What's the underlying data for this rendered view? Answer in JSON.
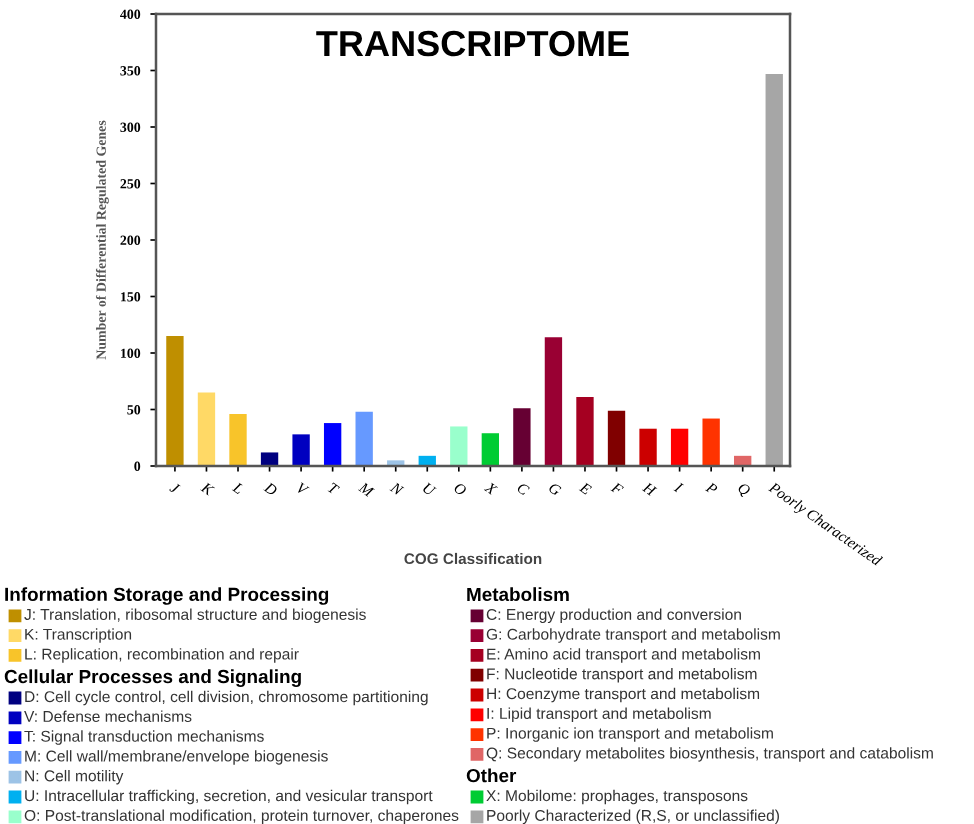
{
  "chart_data": {
    "type": "bar",
    "title": "TRANSCRIPTOME",
    "xlabel": "COG Classification",
    "ylabel": "Number of Differential Regulated Genes",
    "categories": [
      "J",
      "K",
      "L",
      "D",
      "V",
      "T",
      "M",
      "N",
      "U",
      "O",
      "X",
      "C",
      "G",
      "E",
      "F",
      "H",
      "I",
      "P",
      "Q",
      "Poorly Characterized"
    ],
    "series": [
      {
        "name": "J: Translation, ribosomal structure and biogenesis",
        "color": "#bf8f00",
        "values": [
          115,
          null,
          null,
          null,
          null,
          null,
          null,
          null,
          null,
          null,
          null,
          null,
          null,
          null,
          null,
          null,
          null,
          null,
          null,
          null
        ]
      },
      {
        "name": "K: Transcription",
        "color": "#ffd966",
        "values": [
          null,
          65,
          null,
          null,
          null,
          null,
          null,
          null,
          null,
          null,
          null,
          null,
          null,
          null,
          null,
          null,
          null,
          null,
          null,
          null
        ]
      },
      {
        "name": "L: Replication, recombination and repair",
        "color": "#f8c42a",
        "values": [
          null,
          null,
          46,
          null,
          null,
          null,
          null,
          null,
          null,
          null,
          null,
          null,
          null,
          null,
          null,
          null,
          null,
          null,
          null,
          null
        ]
      },
      {
        "name": "D: Cell cycle control, cell division, chromosome partitioning",
        "color": "#000080",
        "values": [
          null,
          null,
          null,
          12,
          null,
          null,
          null,
          null,
          null,
          null,
          null,
          null,
          null,
          null,
          null,
          null,
          null,
          null,
          null,
          null
        ]
      },
      {
        "name": "V: Defense mechanisms",
        "color": "#0000c0",
        "values": [
          null,
          null,
          null,
          null,
          28,
          null,
          null,
          null,
          null,
          null,
          null,
          null,
          null,
          null,
          null,
          null,
          null,
          null,
          null,
          null
        ]
      },
      {
        "name": "T: Signal transduction mechanisms",
        "color": "#0000ff",
        "values": [
          null,
          null,
          null,
          null,
          null,
          38,
          null,
          null,
          null,
          null,
          null,
          null,
          null,
          null,
          null,
          null,
          null,
          null,
          null,
          null
        ]
      },
      {
        "name": "M: Cell wall/membrane/envelope biogenesis",
        "color": "#6699ff",
        "values": [
          null,
          null,
          null,
          null,
          null,
          null,
          48,
          null,
          null,
          null,
          null,
          null,
          null,
          null,
          null,
          null,
          null,
          null,
          null,
          null
        ]
      },
      {
        "name": "N: Cell motility",
        "color": "#9dc3e6",
        "values": [
          null,
          null,
          null,
          null,
          null,
          null,
          null,
          5,
          null,
          null,
          null,
          null,
          null,
          null,
          null,
          null,
          null,
          null,
          null,
          null
        ]
      },
      {
        "name": "U: Intracellular trafficking, secretion, and vesicular transport",
        "color": "#00b0f0",
        "values": [
          null,
          null,
          null,
          null,
          null,
          null,
          null,
          null,
          9,
          null,
          null,
          null,
          null,
          null,
          null,
          null,
          null,
          null,
          null,
          null
        ]
      },
      {
        "name": "O: Post-translational modification, protein turnover, chaperones",
        "color": "#99ffcc",
        "values": [
          null,
          null,
          null,
          null,
          null,
          null,
          null,
          null,
          null,
          35,
          null,
          null,
          null,
          null,
          null,
          null,
          null,
          null,
          null,
          null
        ]
      },
      {
        "name": "C: Energy production and conversion",
        "color": "#660033",
        "values": [
          null,
          null,
          null,
          null,
          null,
          null,
          null,
          null,
          null,
          null,
          null,
          51,
          null,
          null,
          null,
          null,
          null,
          null,
          null,
          null
        ]
      },
      {
        "name": "G: Carbohydrate transport and metabolism",
        "color": "#990033",
        "values": [
          null,
          null,
          null,
          null,
          null,
          null,
          null,
          null,
          null,
          null,
          null,
          null,
          114,
          null,
          null,
          null,
          null,
          null,
          null,
          null
        ]
      },
      {
        "name": "E: Amino acid transport and metabolism",
        "color": "#a50021",
        "values": [
          null,
          null,
          null,
          null,
          null,
          null,
          null,
          null,
          null,
          null,
          null,
          null,
          null,
          61,
          null,
          null,
          null,
          null,
          null,
          null
        ]
      },
      {
        "name": "F: Nucleotide transport and metabolism",
        "color": "#800000",
        "values": [
          null,
          null,
          null,
          null,
          null,
          null,
          null,
          null,
          null,
          null,
          null,
          null,
          null,
          null,
          49,
          null,
          null,
          null,
          null,
          null
        ]
      },
      {
        "name": "H: Coenzyme transport and metabolism",
        "color": "#cc0000",
        "values": [
          null,
          null,
          null,
          null,
          null,
          null,
          null,
          null,
          null,
          null,
          null,
          null,
          null,
          null,
          null,
          33,
          null,
          null,
          null,
          null
        ]
      },
      {
        "name": "I: Lipid transport and metabolism",
        "color": "#ff0000",
        "values": [
          null,
          null,
          null,
          null,
          null,
          null,
          null,
          null,
          null,
          null,
          null,
          null,
          null,
          null,
          null,
          null,
          33,
          null,
          null,
          null
        ]
      },
      {
        "name": "P: Inorganic ion transport and metabolism",
        "color": "#ff3300",
        "values": [
          null,
          null,
          null,
          null,
          null,
          null,
          null,
          null,
          null,
          null,
          null,
          null,
          null,
          null,
          null,
          null,
          null,
          42,
          null,
          null
        ]
      },
      {
        "name": "Q: Secondary metabolites biosynthesis, transport and catabolism",
        "color": "#e06666",
        "values": [
          null,
          null,
          null,
          null,
          null,
          null,
          null,
          null,
          null,
          null,
          null,
          null,
          null,
          null,
          null,
          null,
          null,
          null,
          9,
          null
        ]
      },
      {
        "name": "X: Mobilome: prophages, transposons",
        "color": "#00cc33",
        "values": [
          null,
          null,
          null,
          null,
          null,
          null,
          null,
          null,
          null,
          null,
          29,
          null,
          null,
          null,
          null,
          null,
          null,
          null,
          null,
          null
        ]
      },
      {
        "name": "Poorly Characterized (R,S, or unclassified)",
        "color": "#a6a6a6",
        "values": [
          null,
          null,
          null,
          null,
          null,
          null,
          null,
          null,
          null,
          null,
          null,
          null,
          null,
          null,
          null,
          null,
          null,
          null,
          null,
          347
        ]
      }
    ],
    "annotations": [
      "Information Storage and Processing",
      "Cellular Processes and Signaling",
      "Metabolism",
      "Other"
    ],
    "ylim": [
      0,
      400
    ],
    "yticks": [
      0,
      50,
      100,
      150,
      200,
      250,
      300,
      350,
      400
    ],
    "grid": false,
    "legend": "bottom"
  }
}
